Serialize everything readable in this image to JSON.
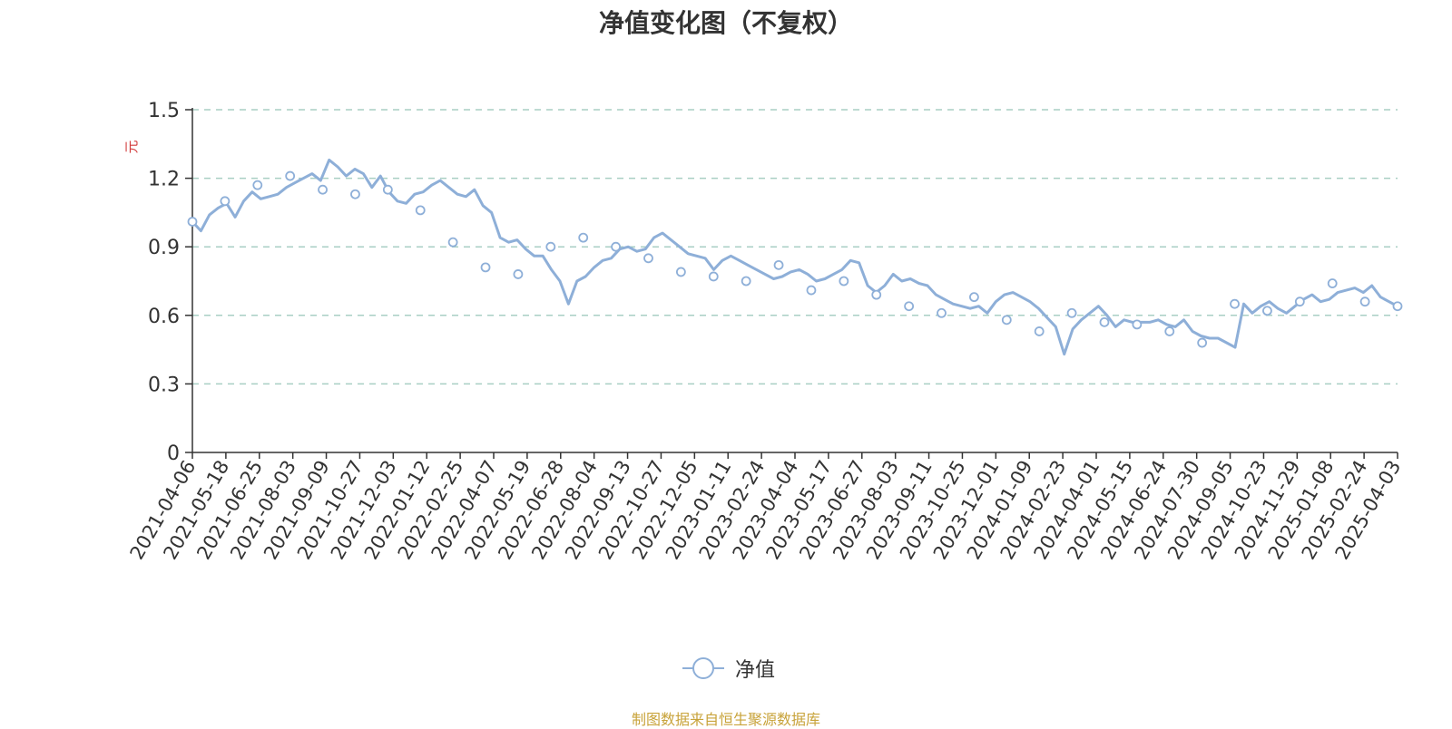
{
  "chart_data": {
    "type": "line",
    "title": "净值变化图（不复权）",
    "ylabel": "元",
    "xlabel": "",
    "ylim": [
      0,
      1.5
    ],
    "yticks": [
      "0",
      "0.3",
      "0.6",
      "0.9",
      "1.2",
      "1.5"
    ],
    "grid": "horizontal dashed",
    "legend_position": "bottom-center",
    "x_tick_labels": [
      "2021-04-06",
      "2021-05-18",
      "2021-06-25",
      "2021-08-03",
      "2021-09-09",
      "2021-10-27",
      "2021-12-03",
      "2022-01-12",
      "2022-02-25",
      "2022-04-07",
      "2022-05-19",
      "2022-06-28",
      "2022-08-04",
      "2022-09-13",
      "2022-10-27",
      "2022-12-05",
      "2023-01-11",
      "2023-02-24",
      "2023-04-04",
      "2023-05-17",
      "2023-06-27",
      "2023-08-03",
      "2023-09-11",
      "2023-10-25",
      "2023-12-01",
      "2024-01-09",
      "2024-02-23",
      "2024-04-01",
      "2024-05-15",
      "2024-06-24",
      "2024-07-30",
      "2024-09-05",
      "2024-10-23",
      "2024-11-29",
      "2025-01-08",
      "2025-02-24",
      "2025-04-03"
    ],
    "series": [
      {
        "name": "净值",
        "color": "#8eafd8",
        "values": [
          1.01,
          0.97,
          1.04,
          1.07,
          1.09,
          1.03,
          1.1,
          1.14,
          1.11,
          1.12,
          1.13,
          1.16,
          1.18,
          1.2,
          1.22,
          1.19,
          1.28,
          1.25,
          1.21,
          1.24,
          1.22,
          1.16,
          1.21,
          1.14,
          1.1,
          1.09,
          1.13,
          1.14,
          1.17,
          1.19,
          1.16,
          1.13,
          1.12,
          1.15,
          1.08,
          1.05,
          0.94,
          0.92,
          0.93,
          0.89,
          0.86,
          0.86,
          0.8,
          0.75,
          0.65,
          0.75,
          0.77,
          0.81,
          0.84,
          0.85,
          0.89,
          0.9,
          0.88,
          0.89,
          0.94,
          0.96,
          0.93,
          0.9,
          0.87,
          0.86,
          0.85,
          0.8,
          0.84,
          0.86,
          0.84,
          0.82,
          0.8,
          0.78,
          0.76,
          0.77,
          0.79,
          0.8,
          0.78,
          0.75,
          0.76,
          0.78,
          0.8,
          0.84,
          0.83,
          0.73,
          0.7,
          0.73,
          0.78,
          0.75,
          0.76,
          0.74,
          0.73,
          0.69,
          0.67,
          0.65,
          0.64,
          0.63,
          0.64,
          0.61,
          0.66,
          0.69,
          0.7,
          0.68,
          0.66,
          0.63,
          0.59,
          0.55,
          0.43,
          0.54,
          0.58,
          0.61,
          0.64,
          0.6,
          0.55,
          0.58,
          0.57,
          0.57,
          0.57,
          0.58,
          0.56,
          0.55,
          0.58,
          0.53,
          0.51,
          0.5,
          0.5,
          0.48,
          0.46,
          0.65,
          0.61,
          0.64,
          0.66,
          0.63,
          0.61,
          0.64,
          0.67,
          0.69,
          0.66,
          0.67,
          0.7,
          0.71,
          0.72,
          0.7,
          0.73,
          0.68,
          0.66,
          0.64
        ],
        "marker_values": [
          1.01,
          1.1,
          1.17,
          1.21,
          1.15,
          1.13,
          1.15,
          1.06,
          0.92,
          0.81,
          0.78,
          0.9,
          0.94,
          0.9,
          0.85,
          0.79,
          0.77,
          0.75,
          0.82,
          0.71,
          0.75,
          0.69,
          0.64,
          0.61,
          0.68,
          0.58,
          0.53,
          0.61,
          0.57,
          0.56,
          0.53,
          0.48,
          0.65,
          0.62,
          0.66,
          0.74,
          0.66,
          0.64
        ]
      }
    ]
  },
  "legend": {
    "label": "净值"
  },
  "footer": {
    "source": "制图数据来自恒生聚源数据库"
  }
}
